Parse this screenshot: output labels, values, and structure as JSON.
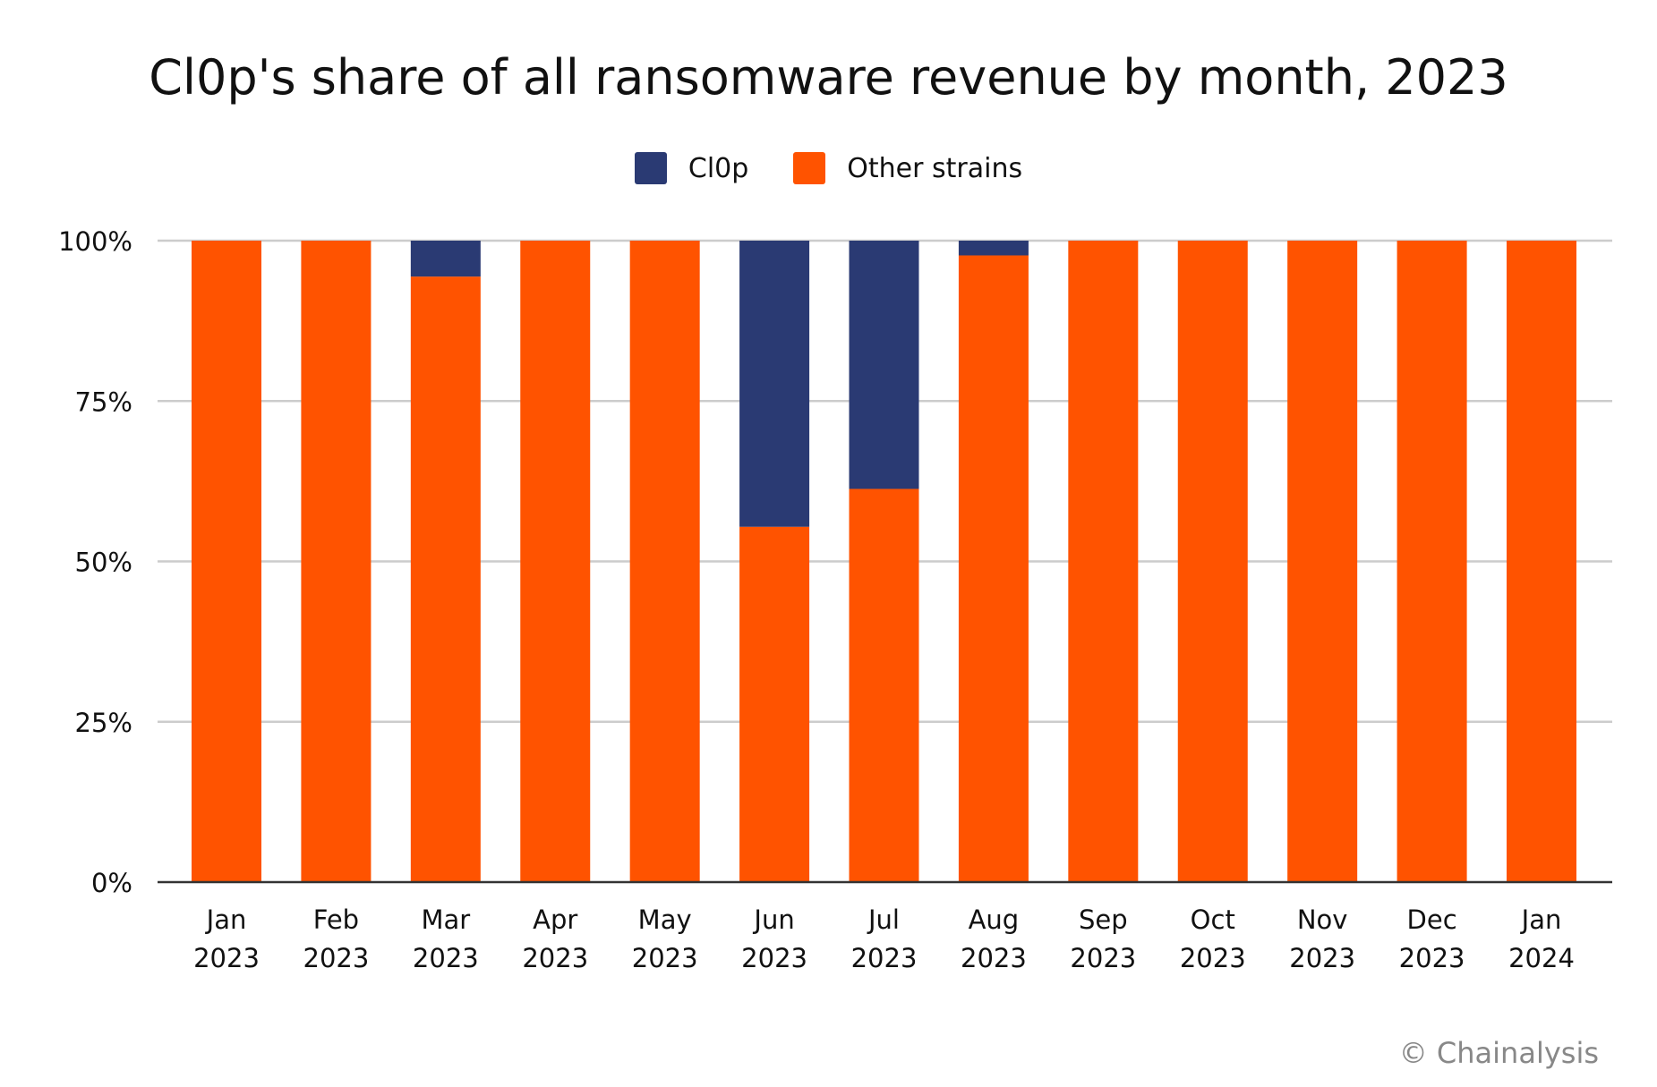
{
  "chart_data": {
    "type": "bar",
    "stacked": true,
    "title": "Cl0p's share of all ransomware revenue by month, 2023",
    "xlabel": "",
    "ylabel": "",
    "ylim": [
      0,
      100
    ],
    "yticks": [
      "0%",
      "25%",
      "50%",
      "75%",
      "100%"
    ],
    "ytick_values": [
      0,
      25,
      50,
      75,
      100
    ],
    "grid": true,
    "legend_position": "top-center",
    "categories": [
      [
        "Jan",
        "2023"
      ],
      [
        "Feb",
        "2023"
      ],
      [
        "Mar",
        "2023"
      ],
      [
        "Apr",
        "2023"
      ],
      [
        "May",
        "2023"
      ],
      [
        "Jun",
        "2023"
      ],
      [
        "Jul",
        "2023"
      ],
      [
        "Aug",
        "2023"
      ],
      [
        "Sep",
        "2023"
      ],
      [
        "Oct",
        "2023"
      ],
      [
        "Nov",
        "2023"
      ],
      [
        "Dec",
        "2023"
      ],
      [
        "Jan",
        "2024"
      ]
    ],
    "series": [
      {
        "name": "Other strains",
        "color": "#FF5300",
        "values": [
          100,
          100,
          94.4,
          100,
          100,
          55.4,
          61.3,
          97.7,
          100,
          100,
          100,
          100,
          100
        ]
      },
      {
        "name": "Cl0p",
        "color": "#2A3A73",
        "values": [
          0,
          0,
          5.6,
          0,
          0,
          44.6,
          38.7,
          2.3,
          0,
          0,
          0,
          0,
          0
        ]
      }
    ]
  },
  "legend": [
    {
      "label": "Cl0p",
      "color": "#2A3A73"
    },
    {
      "label": "Other strains",
      "color": "#FF5300"
    }
  ],
  "credit": "© Chainalysis"
}
